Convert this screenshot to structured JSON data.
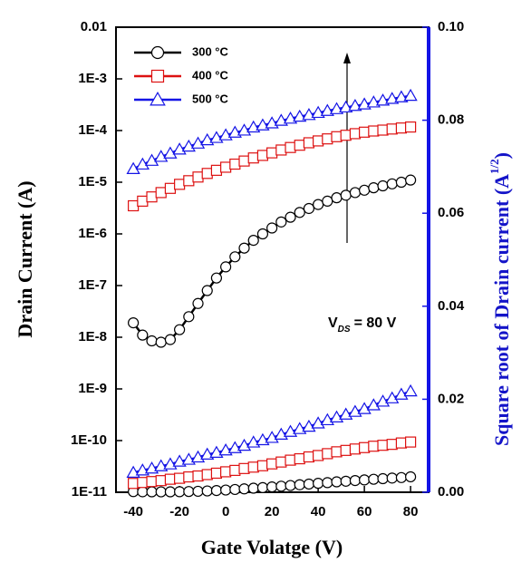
{
  "chart_data": {
    "type": "line",
    "xlabel": "Gate Volatge (V)",
    "ylabel": "Drain Current (A)",
    "y2label": {
      "main": "Square root of Drain current (A",
      "sup": "1/2",
      "end": ")"
    },
    "annotation": {
      "main": "V",
      "sub": "DS",
      "rest": "= 80 V"
    },
    "yscale": "log",
    "xlim": [
      -47.5,
      87.8
    ],
    "xticks": [
      -40,
      -20,
      0,
      20,
      40,
      60,
      80
    ],
    "ylim": [
      1e-11,
      0.01
    ],
    "yticks": [
      0.01,
      {
        "value": 0.001,
        "label": "1E-3"
      },
      {
        "value": 0.0001,
        "label": "1E-4"
      },
      {
        "value": 1e-05,
        "label": "1E-5"
      },
      {
        "value": 1e-06,
        "label": "1E-6"
      },
      {
        "value": 1e-07,
        "label": "1E-7"
      },
      {
        "value": 1e-08,
        "label": "1E-8"
      },
      {
        "value": 1e-09,
        "label": "1E-9"
      },
      {
        "value": 1e-10,
        "label": "1E-10"
      },
      {
        "value": 1e-11,
        "label": "1E-11"
      }
    ],
    "y2lim": [
      0,
      0.1
    ],
    "y2ticks": [
      {
        "value": 0,
        "label": "0.00"
      },
      {
        "value": 0.02,
        "label": "0.02"
      },
      {
        "value": 0.04,
        "label": "0.04"
      },
      {
        "value": 0.06,
        "label": "0.06"
      },
      {
        "value": 0.08,
        "label": "0.08"
      },
      {
        "value": 0.1,
        "label": "0.10"
      }
    ],
    "legend": "upper left",
    "x": [
      -40,
      -36,
      -32,
      -28,
      -24,
      -20,
      -16,
      -12,
      -8,
      -4,
      0,
      4,
      8,
      12,
      16,
      20,
      24,
      28,
      32,
      36,
      40,
      44,
      48,
      52,
      56,
      60,
      64,
      68,
      72,
      76,
      80
    ],
    "series": [
      {
        "name": "300 °C",
        "color": "#000000",
        "marker": "circle",
        "values": [
          1.9e-08,
          1.1e-08,
          8.5e-09,
          8e-09,
          9e-09,
          1.4e-08,
          2.5e-08,
          4.5e-08,
          8e-08,
          1.4e-07,
          2.3e-07,
          3.6e-07,
          5.3e-07,
          7.5e-07,
          1e-06,
          1.3e-06,
          1.7e-06,
          2.1e-06,
          2.6e-06,
          3.1e-06,
          3.7e-06,
          4.3e-06,
          5e-06,
          5.6e-06,
          6.3e-06,
          7e-06,
          7.8e-06,
          8.5e-06,
          9.3e-06,
          1e-05,
          1.1e-05
        ]
      },
      {
        "name": "400 °C",
        "color": "#dd1111",
        "marker": "square",
        "values": [
          3.5e-06,
          4.3e-06,
          5.2e-06,
          6.3e-06,
          7.6e-06,
          9.1e-06,
          1.07e-05,
          1.26e-05,
          1.48e-05,
          1.7e-05,
          1.95e-05,
          2.24e-05,
          2.57e-05,
          2.95e-05,
          3.3e-05,
          3.7e-05,
          4.2e-05,
          4.7e-05,
          5.2e-05,
          5.8e-05,
          6.3e-05,
          6.9e-05,
          7.6e-05,
          8.1e-05,
          8.7e-05,
          9.3e-05,
          9.8e-05,
          0.000102,
          0.000107,
          0.000112,
          0.000117
        ]
      },
      {
        "name": "500 °C",
        "color": "#1414e6",
        "marker": "triangle",
        "values": [
          1.8e-05,
          2.2e-05,
          2.6e-05,
          3.1e-05,
          3.6e-05,
          4.3e-05,
          4.9e-05,
          5.6e-05,
          6.5e-05,
          7.2e-05,
          8.1e-05,
          9.1e-05,
          0.0001,
          0.000115,
          0.000126,
          0.000138,
          0.000155,
          0.00017,
          0.000186,
          0.0002,
          0.00022,
          0.00024,
          0.00026,
          0.00028,
          0.0003,
          0.00032,
          0.00035,
          0.00038,
          0.00041,
          0.00044,
          0.00047
        ]
      },
      {
        "axis": "y2",
        "color": "#000000",
        "marker": "circle",
        "values": [
          0.00014,
          0.0001,
          9.2e-05,
          9e-05,
          9.5e-05,
          0.00012,
          0.00016,
          0.00021,
          0.00028,
          0.00037,
          0.00048,
          0.0006,
          0.00073,
          0.00087,
          0.001,
          0.00114,
          0.0013,
          0.00145,
          0.00161,
          0.00176,
          0.00192,
          0.00207,
          0.00224,
          0.00237,
          0.00251,
          0.00265,
          0.00279,
          0.00292,
          0.00305,
          0.00316,
          0.00332
        ]
      },
      {
        "axis": "y2",
        "color": "#dd1111",
        "marker": "square",
        "values": [
          0.0019,
          0.0021,
          0.0023,
          0.0025,
          0.0028,
          0.003,
          0.0033,
          0.0035,
          0.0038,
          0.0041,
          0.0044,
          0.0047,
          0.0051,
          0.0054,
          0.0057,
          0.0061,
          0.0065,
          0.0069,
          0.0072,
          0.0076,
          0.0079,
          0.0083,
          0.0087,
          0.009,
          0.0093,
          0.0096,
          0.0099,
          0.0101,
          0.0103,
          0.0106,
          0.0108
        ]
      },
      {
        "axis": "y2",
        "color": "#1414e6",
        "marker": "triangle",
        "values": [
          0.0042,
          0.0047,
          0.0051,
          0.0056,
          0.006,
          0.0066,
          0.007,
          0.0075,
          0.0081,
          0.0085,
          0.009,
          0.0095,
          0.01,
          0.0107,
          0.0112,
          0.0117,
          0.0124,
          0.013,
          0.0136,
          0.0141,
          0.0148,
          0.0155,
          0.0161,
          0.0167,
          0.0173,
          0.0179,
          0.0187,
          0.0195,
          0.0202,
          0.021,
          0.0217
        ]
      }
    ]
  }
}
